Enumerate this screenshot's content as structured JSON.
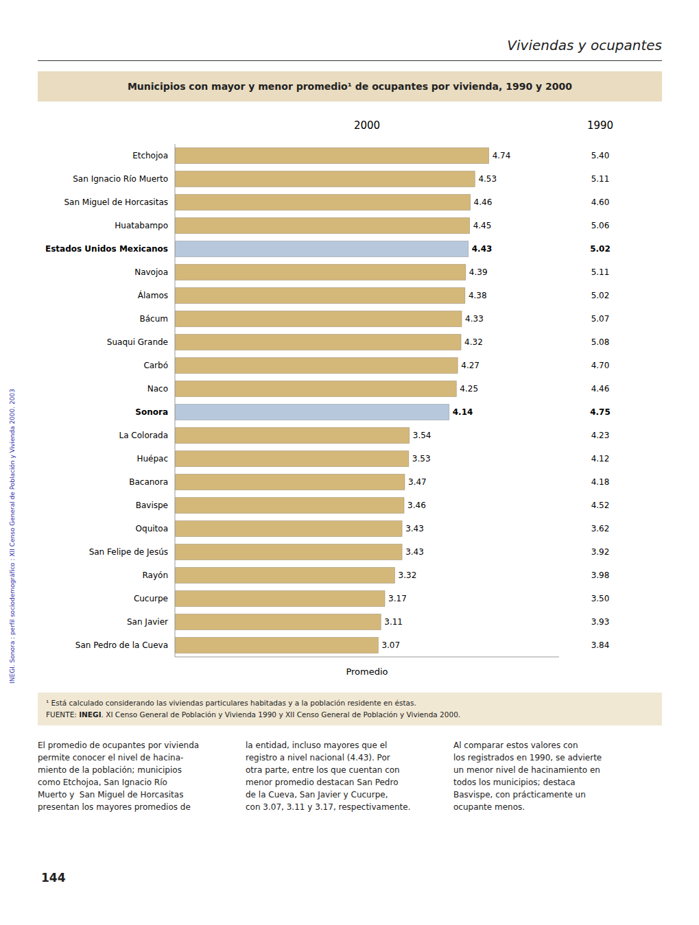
{
  "header": "Viviendas y ocupantes",
  "chart_data": {
    "type": "bar",
    "orientation": "horizontal",
    "title": "Municipios con mayor y menor promedio¹ de ocupantes por vivienda, 1990 y 2000",
    "xlabel": "Promedio",
    "categories": [
      "Etchojoa",
      "San Ignacio Río Muerto",
      "San Miguel de Horcasitas",
      "Huatabampo",
      "Estados Unidos Mexicanos",
      "Navojoa",
      "Álamos",
      "Bácum",
      "Suaqui Grande",
      "Carbó",
      "Naco",
      "Sonora",
      "La Colorada",
      "Huépac",
      "Bacanora",
      "Bavispe",
      "Oquitoa",
      "San Felipe de Jesús",
      "Rayón",
      "Cucurpe",
      "San Javier",
      "San Pedro de la Cueva"
    ],
    "series": [
      {
        "name": "2000",
        "values": [
          4.74,
          4.53,
          4.46,
          4.45,
          4.43,
          4.39,
          4.38,
          4.33,
          4.32,
          4.27,
          4.25,
          4.14,
          3.54,
          3.53,
          3.47,
          3.46,
          3.43,
          3.43,
          3.32,
          3.17,
          3.11,
          3.07
        ],
        "value_labels": [
          "4.74",
          "4.53",
          "4.46",
          "4.45",
          "4.43",
          "4.39",
          "4.38",
          "4.33",
          "4.32",
          "4.27",
          "4.25",
          "4.14",
          "3.54",
          "3.53",
          "3.47",
          "3.46",
          "3.43",
          "3.43",
          "3.32",
          "3.17",
          "3.11",
          "3.07"
        ],
        "colors": [
          "#d4b87a",
          "#d4b87a",
          "#d4b87a",
          "#d4b87a",
          "#b8c8dc",
          "#d4b87a",
          "#d4b87a",
          "#d4b87a",
          "#d4b87a",
          "#d4b87a",
          "#d4b87a",
          "#b8c8dc",
          "#d4b87a",
          "#d4b87a",
          "#d4b87a",
          "#d4b87a",
          "#d4b87a",
          "#d4b87a",
          "#d4b87a",
          "#d4b87a",
          "#d4b87a",
          "#d4b87a"
        ]
      },
      {
        "name": "1990",
        "type": "text",
        "values": [
          5.4,
          5.11,
          4.6,
          5.06,
          5.02,
          5.11,
          5.02,
          5.07,
          5.08,
          4.7,
          4.46,
          4.75,
          4.23,
          4.12,
          4.18,
          4.52,
          3.62,
          3.92,
          3.98,
          3.5,
          3.93,
          3.84
        ],
        "value_labels": [
          "5.40",
          "5.11",
          "4.60",
          "5.06",
          "5.02",
          "5.11",
          "5.02",
          "5.07",
          "5.08",
          "4.70",
          "4.46",
          "4.75",
          "4.23",
          "4.12",
          "4.18",
          "4.52",
          "3.62",
          "3.92",
          "3.98",
          "3.50",
          "3.93",
          "3.84"
        ]
      }
    ],
    "xlim": [
      0,
      5.8
    ],
    "data_labels": true,
    "tick_labels": "y",
    "grid": false
  },
  "footnotes": [
    "¹ Está calculado considerando las viviendas particulares habitadas y a la población residente en éstas."
  ],
  "source": [
    "FUENTE: ",
    "INEGI",
    ". XI Censo General de Población y Vivienda 1990 y XII Censo General de Población y Vivienda 2000."
  ],
  "body": [
    "El promedio de ocupantes por vivienda\npermite conocer el nivel de hacina-\nmiento de la población; municipios\ncomo Etchojoa, San Ignacio Río\nMuerto y  San Miguel de Horcasitas\npresentan los mayores promedios de",
    "la entidad, incluso mayores que el\nregistro a nivel nacional (4.43). Por\notra parte, entre los que cuentan con\nmenor promedio destacan San Pedro\nde la Cueva, San Javier y Cucurpe,\ncon 3.07, 3.11 y 3.17, respectivamente.",
    "Al comparar estos valores con\nlos registrados en 1990, se advierte\nun menor nivel de hacinamiento en\ntodos los municipios; destaca\nBasvispe, con prácticamente un\nocupante menos."
  ],
  "page_number": "144",
  "side_text": "INEGI. Sonora : perfil sociodemográfico : XII Censo General de Población y Vivienda 2000. 2003"
}
